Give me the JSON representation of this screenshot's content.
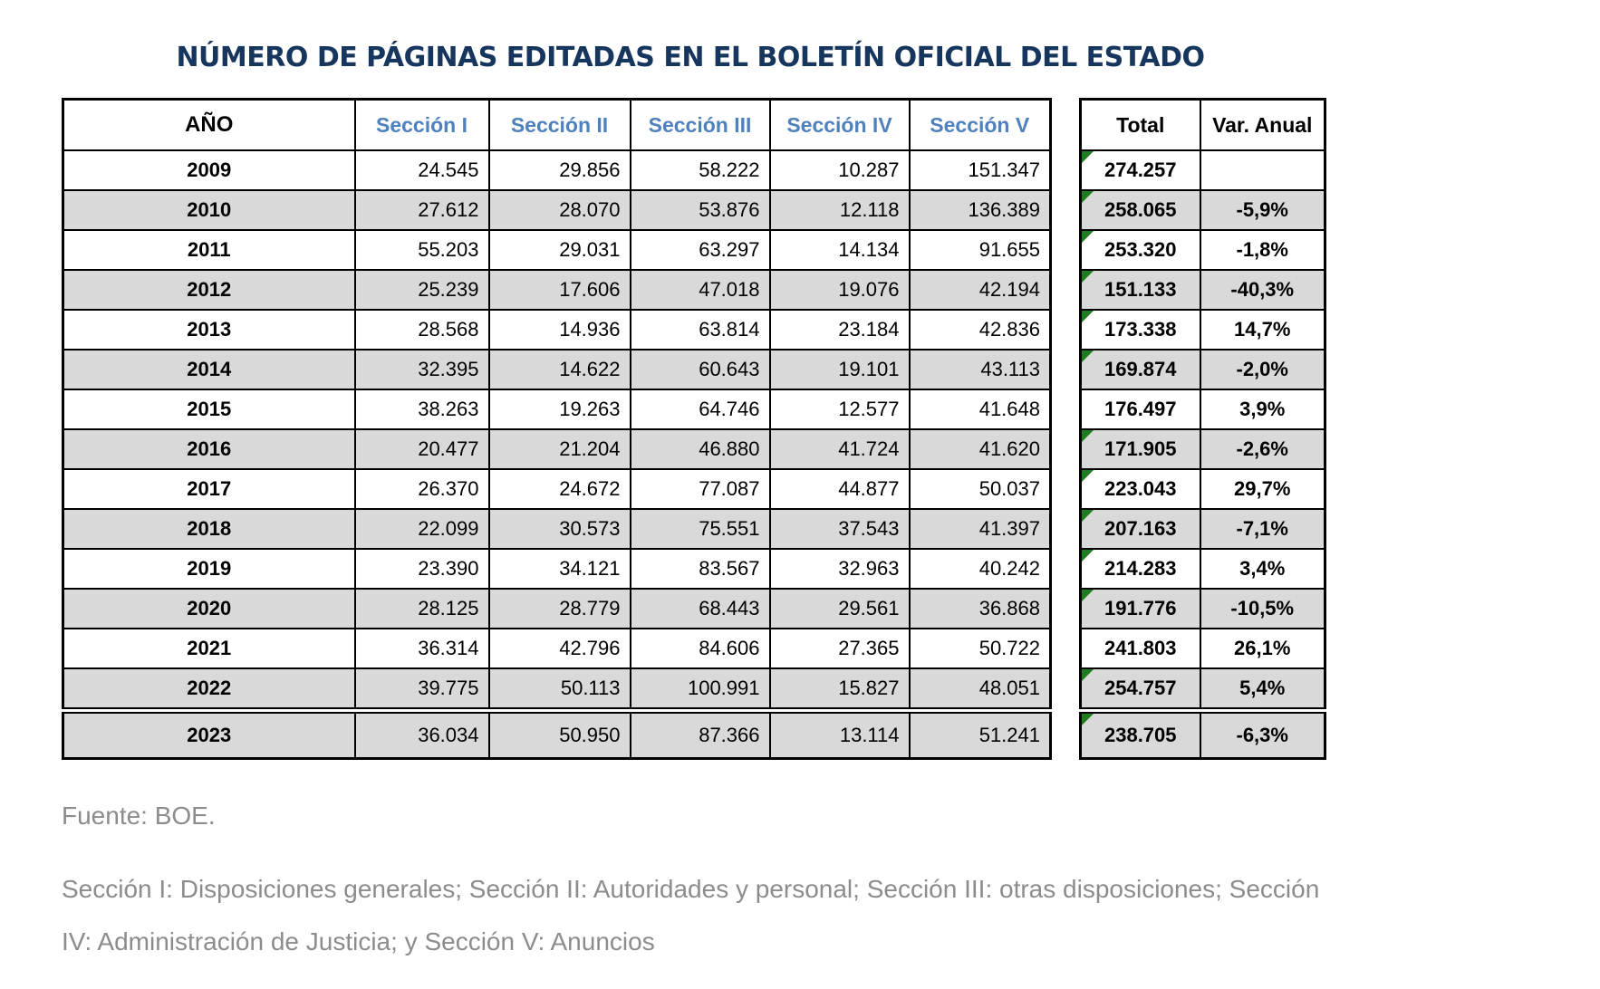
{
  "title": "NÚMERO DE PÁGINAS EDITADAS EN EL BOLETÍN OFICIAL DEL ESTADO",
  "colors": {
    "title_navy": "#17365d",
    "section_header_blue": "#4e81bd",
    "shaded_row_gray": "#d9d9d9",
    "border_black": "#000000",
    "marker_green": "#1e7d1e",
    "footer_gray": "#8c8c8c"
  },
  "table": {
    "year_header": "AÑO",
    "section_headers": [
      "Sección I",
      "Sección II",
      "Sección III",
      "Sección IV",
      "Sección V"
    ],
    "total_header": "Total",
    "var_header": "Var. Anual",
    "rows": [
      {
        "year": "2009",
        "values": [
          "24.545",
          "29.856",
          "58.222",
          "10.287",
          "151.347"
        ],
        "total": "274.257",
        "var": "",
        "shaded": false,
        "marker": true
      },
      {
        "year": "2010",
        "values": [
          "27.612",
          "28.070",
          "53.876",
          "12.118",
          "136.389"
        ],
        "total": "258.065",
        "var": "-5,9%",
        "shaded": true,
        "marker": true
      },
      {
        "year": "2011",
        "values": [
          "55.203",
          "29.031",
          "63.297",
          "14.134",
          "91.655"
        ],
        "total": "253.320",
        "var": "-1,8%",
        "shaded": false,
        "marker": true
      },
      {
        "year": "2012",
        "values": [
          "25.239",
          "17.606",
          "47.018",
          "19.076",
          "42.194"
        ],
        "total": "151.133",
        "var": "-40,3%",
        "shaded": true,
        "marker": true
      },
      {
        "year": "2013",
        "values": [
          "28.568",
          "14.936",
          "63.814",
          "23.184",
          "42.836"
        ],
        "total": "173.338",
        "var": "14,7%",
        "shaded": false,
        "marker": true
      },
      {
        "year": "2014",
        "values": [
          "32.395",
          "14.622",
          "60.643",
          "19.101",
          "43.113"
        ],
        "total": "169.874",
        "var": "-2,0%",
        "shaded": true,
        "marker": true
      },
      {
        "year": "2015",
        "values": [
          "38.263",
          "19.263",
          "64.746",
          "12.577",
          "41.648"
        ],
        "total": "176.497",
        "var": "3,9%",
        "shaded": false,
        "marker": false
      },
      {
        "year": "2016",
        "values": [
          "20.477",
          "21.204",
          "46.880",
          "41.724",
          "41.620"
        ],
        "total": "171.905",
        "var": "-2,6%",
        "shaded": true,
        "marker": true
      },
      {
        "year": "2017",
        "values": [
          "26.370",
          "24.672",
          "77.087",
          "44.877",
          "50.037"
        ],
        "total": "223.043",
        "var": "29,7%",
        "shaded": false,
        "marker": true
      },
      {
        "year": "2018",
        "values": [
          "22.099",
          "30.573",
          "75.551",
          "37.543",
          "41.397"
        ],
        "total": "207.163",
        "var": "-7,1%",
        "shaded": true,
        "marker": true
      },
      {
        "year": "2019",
        "values": [
          "23.390",
          "34.121",
          "83.567",
          "32.963",
          "40.242"
        ],
        "total": "214.283",
        "var": "3,4%",
        "shaded": false,
        "marker": true
      },
      {
        "year": "2020",
        "values": [
          "28.125",
          "28.779",
          "68.443",
          "29.561",
          "36.868"
        ],
        "total": "191.776",
        "var": "-10,5%",
        "shaded": true,
        "marker": true
      },
      {
        "year": "2021",
        "values": [
          "36.314",
          "42.796",
          "84.606",
          "27.365",
          "50.722"
        ],
        "total": "241.803",
        "var": "26,1%",
        "shaded": false,
        "marker": false
      },
      {
        "year": "2022",
        "values": [
          "39.775",
          "50.113",
          "100.991",
          "15.827",
          "48.051"
        ],
        "total": "254.757",
        "var": "5,4%",
        "shaded": true,
        "marker": true
      },
      {
        "year": "2023",
        "values": [
          "36.034",
          "50.950",
          "87.366",
          "13.114",
          "51.241"
        ],
        "total": "238.705",
        "var": "-6,3%",
        "shaded": true,
        "marker": true,
        "last": true
      }
    ]
  },
  "footer": {
    "source": "Fuente: BOE.",
    "legend": "Sección I: Disposiciones generales; Sección II: Autoridades y personal; Sección III: otras disposiciones; Sección IV: Administración de Justicia; y Sección V: Anuncios"
  },
  "chart_data": {
    "type": "table",
    "title": "NÚMERO DE PÁGINAS EDITADAS EN EL BOLETÍN OFICIAL DEL ESTADO",
    "columns": [
      "Año",
      "Sección I",
      "Sección II",
      "Sección III",
      "Sección IV",
      "Sección V",
      "Total",
      "Var. Anual (%)"
    ],
    "rows": [
      [
        2009,
        24545,
        29856,
        58222,
        10287,
        151347,
        274257,
        null
      ],
      [
        2010,
        27612,
        28070,
        53876,
        12118,
        136389,
        258065,
        -5.9
      ],
      [
        2011,
        55203,
        29031,
        63297,
        14134,
        91655,
        253320,
        -1.8
      ],
      [
        2012,
        25239,
        17606,
        47018,
        19076,
        42194,
        151133,
        -40.3
      ],
      [
        2013,
        28568,
        14936,
        63814,
        23184,
        42836,
        173338,
        14.7
      ],
      [
        2014,
        32395,
        14622,
        60643,
        19101,
        43113,
        169874,
        -2.0
      ],
      [
        2015,
        38263,
        19263,
        64746,
        12577,
        41648,
        176497,
        3.9
      ],
      [
        2016,
        20477,
        21204,
        46880,
        41724,
        41620,
        171905,
        -2.6
      ],
      [
        2017,
        26370,
        24672,
        77087,
        44877,
        50037,
        223043,
        29.7
      ],
      [
        2018,
        22099,
        30573,
        75551,
        37543,
        41397,
        207163,
        -7.1
      ],
      [
        2019,
        23390,
        34121,
        83567,
        32963,
        40242,
        214283,
        3.4
      ],
      [
        2020,
        28125,
        28779,
        68443,
        29561,
        36868,
        191776,
        -10.5
      ],
      [
        2021,
        36314,
        42796,
        84606,
        27365,
        50722,
        241803,
        26.1
      ],
      [
        2022,
        39775,
        50113,
        100991,
        15827,
        48051,
        254757,
        5.4
      ],
      [
        2023,
        36034,
        50950,
        87366,
        13114,
        51241,
        238705,
        -6.3
      ]
    ],
    "source": "Fuente: BOE.",
    "notes": "Sección I: Disposiciones generales; Sección II: Autoridades y personal; Sección III: otras disposiciones; Sección IV: Administración de Justicia; y Sección V: Anuncios"
  }
}
